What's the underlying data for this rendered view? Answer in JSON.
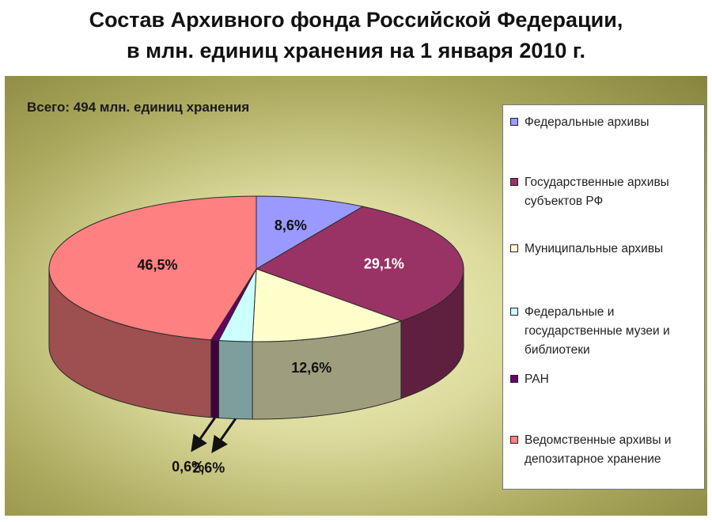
{
  "title_line1": "Состав Архивного фонда Российской Федерации,",
  "title_line2": "в млн. единиц хранения на 1 января 2010 г.",
  "chart_data": {
    "type": "pie",
    "title": "Состав Архивного фонда Российской Федерации, в млн. единиц хранения на 1 января 2010 г.",
    "subtitle": "Всего: 494 млн. единиц хранения",
    "unit": "%",
    "legend_position": "right",
    "slices": [
      {
        "name": "Федеральные архивы",
        "value": 8.6,
        "label": "8,6%",
        "color": "#9999ff"
      },
      {
        "name": "Государственные архивы субъектов РФ",
        "value": 29.1,
        "label": "29,1%",
        "color": "#993366"
      },
      {
        "name": "Муниципальные архивы",
        "value": 12.6,
        "label": "12,6%",
        "color": "#ffffcc"
      },
      {
        "name": "Федеральные и государственные музеи и библиотеки",
        "value": 2.6,
        "label": "2,6%",
        "color": "#ccffff"
      },
      {
        "name": "РАН",
        "value": 0.6,
        "label": "0,6%",
        "color": "#660066"
      },
      {
        "name": "Ведомственные архивы и депозитарное хранение",
        "value": 46.5,
        "label": "46,5%",
        "color": "#ff8080"
      }
    ]
  },
  "legend": {
    "items": [
      {
        "lines": [
          "Федеральные архивы"
        ],
        "color": "#9999ff"
      },
      {
        "lines": [
          "Государственные архивы",
          "субъектов РФ"
        ],
        "color": "#993366"
      },
      {
        "lines": [
          "Муниципальные архивы"
        ],
        "color": "#ffffcc"
      },
      {
        "lines": [
          "Федеральные и",
          "государственные музеи и",
          "библиотеки"
        ],
        "color": "#ccffff"
      },
      {
        "lines": [
          "РАН"
        ],
        "color": "#660066"
      },
      {
        "lines": [
          "Ведомственные архивы и",
          "депозитарное хранение"
        ],
        "color": "#ff8080"
      }
    ]
  }
}
